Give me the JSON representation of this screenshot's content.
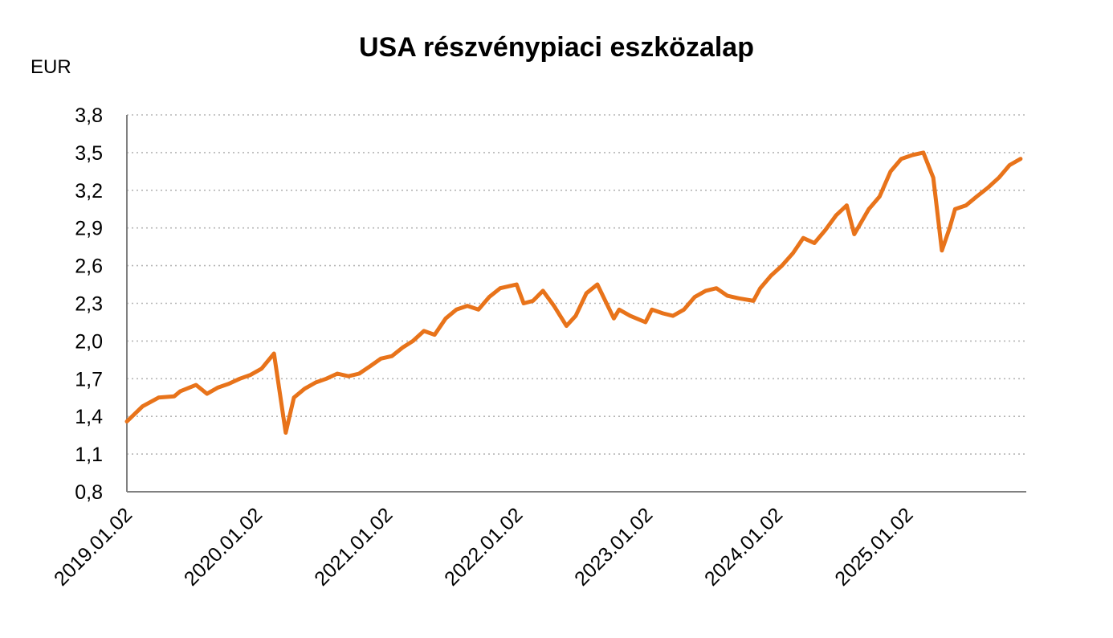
{
  "chart_data": {
    "type": "line",
    "title": "USA részvénypiaci eszközalap",
    "ylabel": "EUR",
    "xlabel": "",
    "ylim": [
      0.8,
      3.8
    ],
    "yticks": [
      "0,8",
      "1,1",
      "1,4",
      "1,7",
      "2,0",
      "2,3",
      "2,6",
      "2,9",
      "3,2",
      "3,5",
      "3,8"
    ],
    "xticks": [
      "2019.01.02",
      "2020.01.02",
      "2021.01.02",
      "2022.01.02",
      "2023.01.02",
      "2024.01.02",
      "2025.01.02"
    ],
    "grid": "horizontal-dotted",
    "line_color": "#E8731A",
    "series": [
      {
        "x": [
          "2019.01.02",
          "2019.02.15",
          "2019.04.01",
          "2019.05.15",
          "2019.06.01",
          "2019.07.15",
          "2019.08.15",
          "2019.09.15",
          "2019.10.15",
          "2019.11.15",
          "2019.12.15",
          "2020.01.15",
          "2020.02.19",
          "2020.03.23",
          "2020.04.15",
          "2020.05.15",
          "2020.06.15",
          "2020.07.15",
          "2020.08.15",
          "2020.09.15",
          "2020.10.15",
          "2020.11.15",
          "2020.12.15",
          "2021.01.15",
          "2021.02.15",
          "2021.03.15",
          "2021.04.15",
          "2021.05.15",
          "2021.06.15",
          "2021.07.15",
          "2021.08.15",
          "2021.09.15",
          "2021.10.15",
          "2021.11.15",
          "2021.12.31",
          "2022.01.20",
          "2022.02.15",
          "2022.03.15",
          "2022.04.15",
          "2022.05.20",
          "2022.06.15",
          "2022.07.15",
          "2022.08.15",
          "2022.09.30",
          "2022.10.15",
          "2022.11.15",
          "2022.12.28",
          "2023.01.15",
          "2023.02.15",
          "2023.03.15",
          "2023.04.15",
          "2023.05.15",
          "2023.06.15",
          "2023.07.15",
          "2023.08.15",
          "2023.09.15",
          "2023.10.27",
          "2023.11.15",
          "2023.12.15",
          "2024.01.15",
          "2024.02.15",
          "2024.03.15",
          "2024.04.15",
          "2024.05.15",
          "2024.06.15",
          "2024.07.15",
          "2024.08.05",
          "2024.09.15",
          "2024.10.15",
          "2024.11.15",
          "2024.12.15",
          "2025.01.15",
          "2025.02.15",
          "2025.03.15",
          "2025.04.08",
          "2025.04.30",
          "2025.05.15",
          "2025.06.15",
          "2025.07.15",
          "2025.08.15",
          "2025.09.15",
          "2025.10.15",
          "2025.11.15"
        ],
        "values": [
          1.36,
          1.48,
          1.55,
          1.56,
          1.6,
          1.65,
          1.58,
          1.63,
          1.66,
          1.7,
          1.73,
          1.78,
          1.9,
          1.27,
          1.55,
          1.62,
          1.67,
          1.7,
          1.74,
          1.72,
          1.74,
          1.8,
          1.86,
          1.88,
          1.95,
          2.0,
          2.08,
          2.05,
          2.18,
          2.25,
          2.28,
          2.25,
          2.35,
          2.42,
          2.45,
          2.3,
          2.32,
          2.4,
          2.28,
          2.12,
          2.2,
          2.38,
          2.45,
          2.18,
          2.25,
          2.2,
          2.15,
          2.25,
          2.22,
          2.2,
          2.25,
          2.35,
          2.4,
          2.42,
          2.36,
          2.34,
          2.32,
          2.42,
          2.52,
          2.6,
          2.7,
          2.82,
          2.78,
          2.88,
          3.0,
          3.08,
          2.85,
          3.05,
          3.15,
          3.35,
          3.45,
          3.48,
          3.5,
          3.3,
          2.72,
          2.9,
          3.05,
          3.08,
          3.15,
          3.22,
          3.3,
          3.4,
          3.45
        ]
      }
    ]
  }
}
